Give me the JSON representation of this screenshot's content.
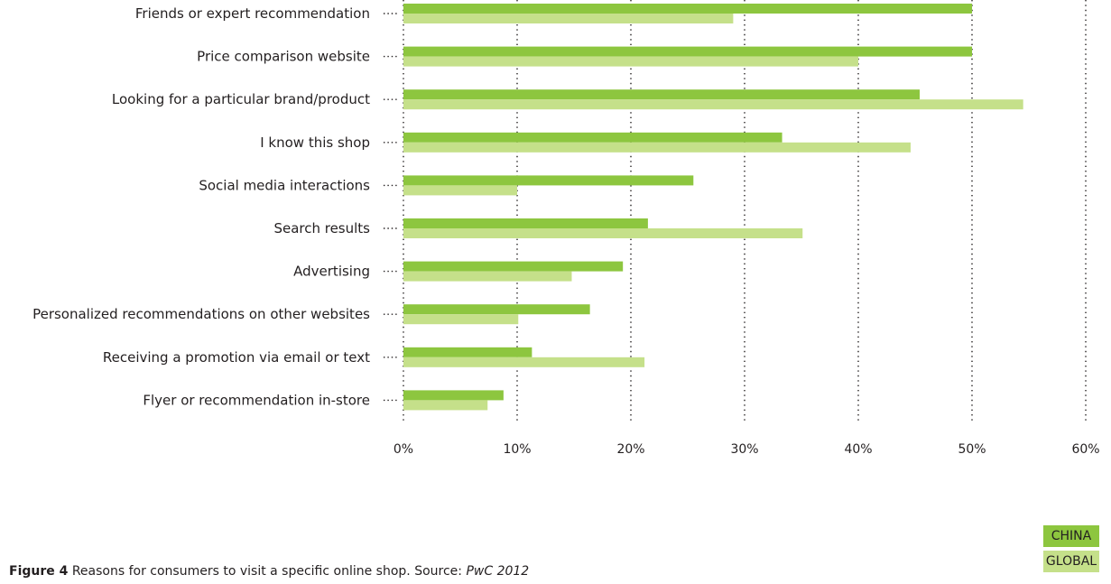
{
  "chart_data": {
    "type": "bar",
    "orientation": "horizontal",
    "categories": [
      "Friends or expert recommendation",
      "Price comparison website",
      "Looking for a particular brand/product",
      "I know this shop",
      "Social media interactions",
      "Search results",
      "Advertising",
      "Personalized recommendations on other websites",
      "Receiving a promotion via email or text",
      "Flyer or recommendation in-store"
    ],
    "series": [
      {
        "name": "CHINA",
        "color": "#8dc63f",
        "values": [
          50,
          50,
          45.4,
          33.3,
          25.5,
          21.5,
          19.3,
          16.4,
          11.3,
          8.8
        ]
      },
      {
        "name": "GLOBAL",
        "color": "#c5e08a",
        "values": [
          29,
          40,
          54.5,
          44.6,
          10,
          35.1,
          14.8,
          10.1,
          21.2,
          7.4
        ]
      }
    ],
    "xlim": [
      0,
      60
    ],
    "xticks": [
      0,
      10,
      20,
      30,
      40,
      50,
      60
    ],
    "xtick_labels": [
      "0%",
      "10%",
      "20%",
      "30%",
      "40%",
      "50%",
      "60%"
    ],
    "grid": "vertical dotted",
    "legend": "bottom-right"
  },
  "caption": {
    "figure_label": "Figure 4",
    "text": " Reasons for consumers to visit a specific online shop. Source: ",
    "source": "PwC 2012"
  },
  "legend": {
    "china": "CHINA",
    "global": "GLOBAL"
  }
}
